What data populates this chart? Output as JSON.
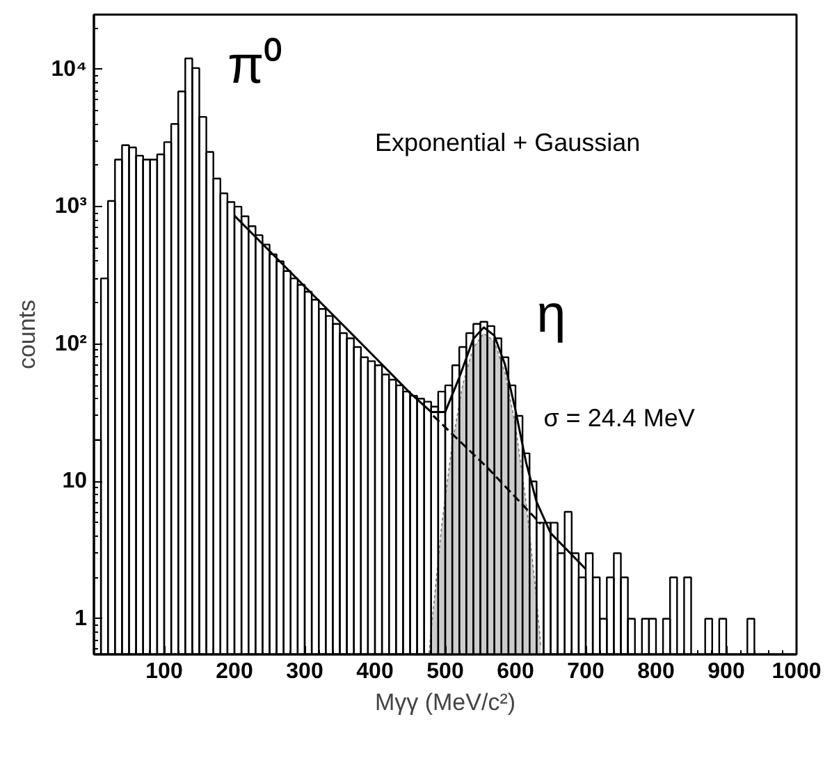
{
  "chart_data": {
    "type": "histogram",
    "xlabel": "Mγγ (MeV/c²)",
    "ylabel": "counts",
    "log": "y",
    "grid": false,
    "color": "#000000",
    "bins": [
      0,
      10,
      20,
      30,
      40,
      50,
      60,
      70,
      80,
      90,
      100,
      110,
      120,
      130,
      140,
      150,
      160,
      170,
      180,
      190,
      200,
      210,
      220,
      230,
      240,
      250,
      260,
      270,
      280,
      290,
      300,
      310,
      320,
      330,
      340,
      350,
      360,
      370,
      380,
      390,
      400,
      410,
      420,
      430,
      440,
      450,
      460,
      470,
      480,
      490,
      500,
      510,
      520,
      530,
      540,
      550,
      560,
      570,
      580,
      590,
      600,
      610,
      620,
      630,
      640,
      650,
      660,
      670,
      680,
      690,
      700,
      710,
      720,
      730,
      740,
      750,
      760,
      770,
      780,
      790,
      800,
      810,
      820,
      830,
      840,
      850,
      860,
      870,
      880,
      890,
      900,
      910,
      920,
      930,
      940,
      950
    ],
    "values": [
      20,
      300,
      1100,
      2200,
      2800,
      2700,
      2350,
      2200,
      2200,
      2400,
      2950,
      4000,
      6900,
      12000,
      10200,
      4500,
      2500,
      1600,
      1250,
      1080,
      1000,
      850,
      720,
      620,
      530,
      450,
      400,
      340,
      300,
      270,
      240,
      210,
      180,
      160,
      140,
      120,
      110,
      95,
      80,
      75,
      70,
      60,
      55,
      50,
      45,
      42,
      40,
      38,
      35,
      45,
      50,
      70,
      95,
      120,
      140,
      145,
      135,
      110,
      80,
      50,
      30,
      16,
      10,
      5,
      5,
      5,
      3,
      6,
      3,
      2,
      3,
      2,
      1,
      2,
      3,
      2,
      1,
      null,
      1,
      1,
      null,
      1,
      2,
      null,
      2,
      null,
      null,
      1,
      null,
      1,
      null,
      null,
      null,
      1,
      null
    ],
    "series": [
      {
        "type": "area",
        "color": "#cccccc",
        "x": [
          477,
          480,
          495,
          510,
          525,
          540,
          555,
          570,
          585,
          600,
          615,
          630,
          636
        ],
        "values": [
          0.56,
          0.82,
          4.75,
          18.8,
          50.8,
          94,
          119.6,
          104,
          62,
          25.4,
          7.1,
          1.4,
          0.63
        ]
      },
      {
        "type": "line",
        "color": "#000000",
        "line_style": "dashed",
        "x": [
          483,
          560,
          636
        ],
        "values": [
          30,
          12.6,
          4.9
        ]
      },
      {
        "type": "line",
        "color": "#000000",
        "line_style": "solid",
        "x": [
          200,
          250,
          300,
          350,
          400,
          450,
          480,
          500,
          520,
          540,
          555,
          570,
          585,
          600,
          615,
          630,
          650,
          700
        ],
        "values": [
          860,
          475,
          262,
          145,
          80,
          44,
          32,
          32,
          57,
          109,
          132,
          115,
          71,
          33,
          13.8,
          7.1,
          4.2,
          2.3
        ]
      }
    ],
    "xlim": [
      0,
      1000
    ],
    "xticks": [
      100,
      200,
      300,
      400,
      500,
      600,
      700,
      800,
      900,
      1000
    ],
    "ylim": [
      0.55,
      25000
    ],
    "yticks": [
      1,
      10,
      {
        "value": 100,
        "label": "10²"
      },
      {
        "value": 1000,
        "label": "10³"
      },
      {
        "value": 10000,
        "label": "10⁴"
      }
    ],
    "annotations": [
      "π⁰",
      "Exponential + Gaussian",
      "η",
      "σ = 24.4 MeV"
    ]
  }
}
